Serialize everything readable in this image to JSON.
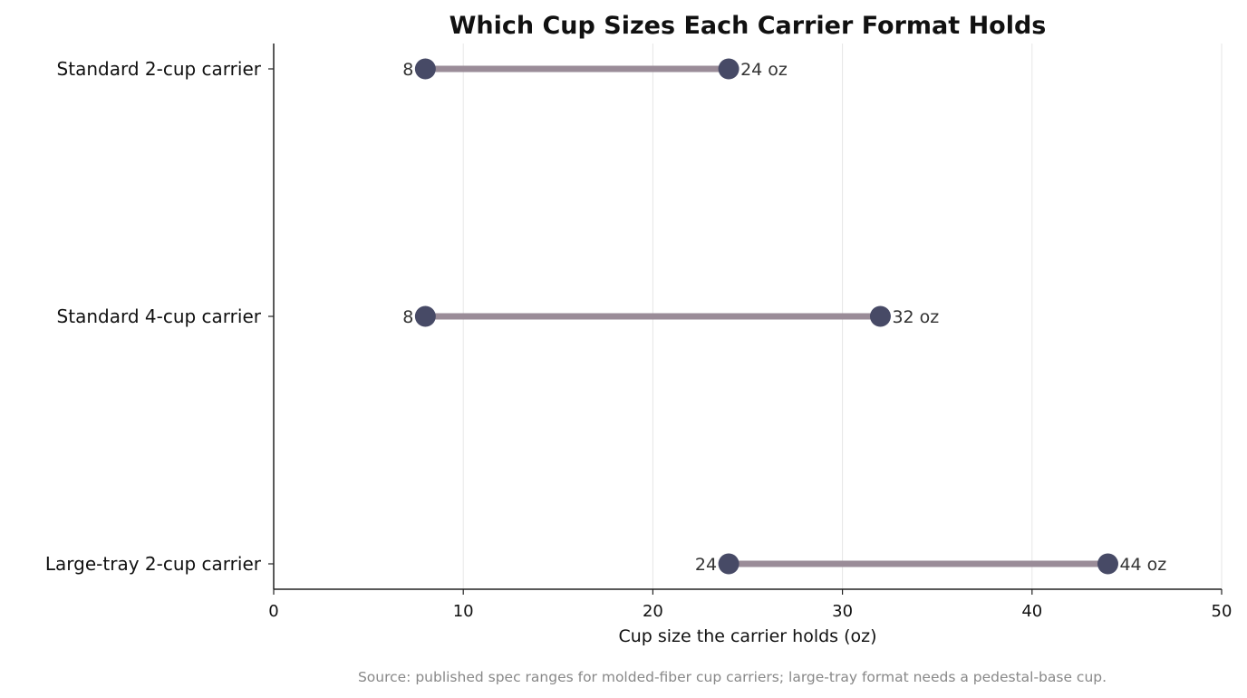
{
  "chart_data": {
    "type": "dumbbell",
    "title": "Which Cup Sizes Each Carrier Format Holds",
    "xlabel": "Cup size the carrier holds (oz)",
    "ylabel": "",
    "xlim": [
      0,
      50
    ],
    "xticks": [
      0,
      10,
      20,
      30,
      40,
      50
    ],
    "grid": "vertical",
    "categories": [
      "Standard 2-cup carrier",
      "Standard 4-cup carrier",
      "Large-tray 2-cup carrier"
    ],
    "ranges": [
      {
        "category": "Standard 2-cup carrier",
        "min": 8,
        "max": 24,
        "min_label": "8",
        "max_label": "24 oz"
      },
      {
        "category": "Standard 4-cup carrier",
        "min": 8,
        "max": 32,
        "min_label": "8",
        "max_label": "32 oz"
      },
      {
        "category": "Large-tray 2-cup carrier",
        "min": 24,
        "max": 44,
        "min_label": "24",
        "max_label": "44 oz"
      }
    ],
    "source": "Source: published spec ranges for molded-fiber cup carriers; large-tray format needs a pedestal-base cup.",
    "colors": {
      "dot": "#474a66",
      "bar": "#9a8c98",
      "grid": "#e6e6e6",
      "axis": "#222222",
      "label": "#333333",
      "source": "#888888"
    }
  }
}
